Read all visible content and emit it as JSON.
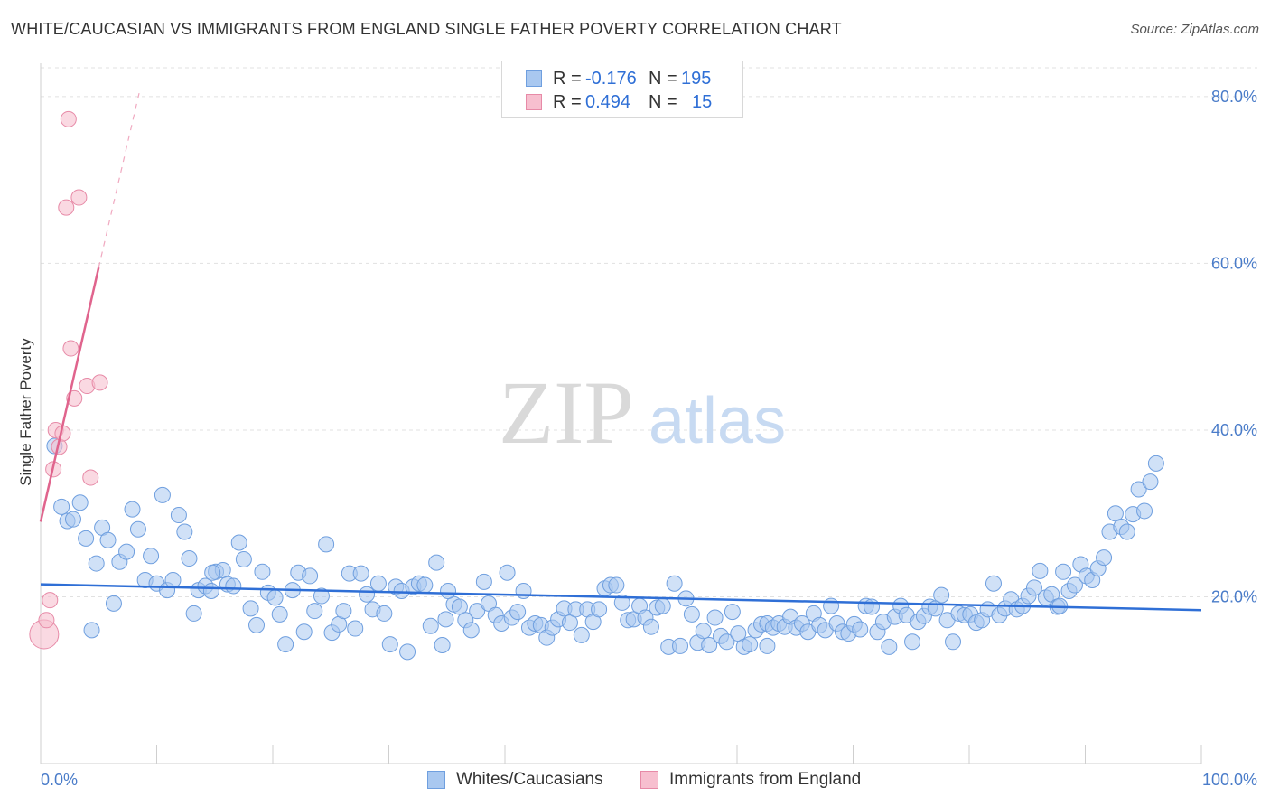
{
  "title": "WHITE/CAUCASIAN VS IMMIGRANTS FROM ENGLAND SINGLE FATHER POVERTY CORRELATION CHART",
  "source": "Source: ZipAtlas.com",
  "watermark": {
    "zip": "ZIP",
    "atlas": "atlas"
  },
  "legend": {
    "rows": [
      {
        "r_label": "R =",
        "r_value": "-0.176",
        "n_label": "N =",
        "n_value": "195",
        "color": "#a9c8f0",
        "border": "#6f9fdf"
      },
      {
        "r_label": "R =",
        "r_value": "0.494",
        "n_label": "N =",
        "n_value": "15",
        "color": "#f7bfcf",
        "border": "#e78aa7"
      }
    ]
  },
  "bottom_legend": [
    {
      "label": "Whites/Caucasians",
      "color": "#a9c8f0",
      "border": "#6f9fdf"
    },
    {
      "label": "Immigrants from England",
      "color": "#f7bfcf",
      "border": "#e78aa7"
    }
  ],
  "chart_data": {
    "type": "scatter",
    "title": "WHITE/CAUCASIAN VS IMMIGRANTS FROM ENGLAND SINGLE FATHER POVERTY CORRELATION CHART",
    "xlabel": "",
    "ylabel": "Single Father Poverty",
    "xlim": [
      0,
      100
    ],
    "ylim": [
      0,
      84
    ],
    "x_tick_labels": [
      "0.0%",
      "100.0%"
    ],
    "y_ticks": [
      20,
      40,
      60,
      80
    ],
    "y_tick_labels": [
      "20.0%",
      "40.0%",
      "60.0%",
      "80.0%"
    ],
    "grid": "horizontal dashed",
    "series": [
      {
        "name": "Whites/Caucasians",
        "color": "#a9c8f0",
        "edge": "#6f9fdf",
        "trend": {
          "x0": 0,
          "y0": 21.5,
          "x1": 100,
          "y1": 18.4,
          "color": "#2f6fd6"
        },
        "points": [
          [
            1.2,
            38.1
          ],
          [
            1.8,
            30.8
          ],
          [
            2.3,
            29.1
          ],
          [
            2.8,
            29.3
          ],
          [
            3.4,
            31.3
          ],
          [
            3.9,
            27.0
          ],
          [
            4.4,
            16.0
          ],
          [
            4.8,
            24.0
          ],
          [
            5.3,
            28.3
          ],
          [
            5.8,
            26.8
          ],
          [
            6.3,
            19.2
          ],
          [
            6.8,
            24.2
          ],
          [
            7.4,
            25.4
          ],
          [
            7.9,
            30.5
          ],
          [
            8.4,
            28.1
          ],
          [
            9.0,
            22.0
          ],
          [
            9.5,
            24.9
          ],
          [
            10.0,
            21.6
          ],
          [
            10.5,
            32.2
          ],
          [
            10.9,
            20.8
          ],
          [
            11.4,
            22.0
          ],
          [
            11.9,
            29.8
          ],
          [
            12.4,
            27.8
          ],
          [
            12.8,
            24.6
          ],
          [
            13.2,
            18.0
          ],
          [
            13.6,
            20.8
          ],
          [
            14.2,
            21.3
          ],
          [
            14.7,
            20.7
          ],
          [
            15.1,
            23.0
          ],
          [
            15.7,
            23.2
          ],
          [
            16.1,
            21.5
          ],
          [
            16.6,
            21.3
          ],
          [
            17.1,
            26.5
          ],
          [
            17.5,
            24.5
          ],
          [
            18.1,
            18.6
          ],
          [
            18.6,
            16.6
          ],
          [
            19.1,
            23.0
          ],
          [
            19.6,
            20.5
          ],
          [
            20.2,
            19.9
          ],
          [
            20.6,
            17.9
          ],
          [
            21.1,
            14.3
          ],
          [
            21.7,
            20.8
          ],
          [
            22.2,
            22.9
          ],
          [
            22.7,
            15.8
          ],
          [
            23.2,
            22.5
          ],
          [
            23.6,
            18.3
          ],
          [
            24.2,
            20.1
          ],
          [
            24.6,
            26.3
          ],
          [
            25.1,
            15.7
          ],
          [
            25.7,
            16.7
          ],
          [
            26.1,
            18.3
          ],
          [
            26.6,
            22.8
          ],
          [
            27.1,
            16.2
          ],
          [
            27.6,
            22.8
          ],
          [
            28.1,
            20.3
          ],
          [
            28.6,
            18.5
          ],
          [
            29.1,
            21.6
          ],
          [
            29.6,
            18.0
          ],
          [
            30.1,
            14.3
          ],
          [
            30.6,
            21.2
          ],
          [
            31.1,
            20.7
          ],
          [
            31.6,
            13.4
          ],
          [
            32.1,
            21.2
          ],
          [
            32.6,
            21.6
          ],
          [
            33.1,
            21.4
          ],
          [
            33.6,
            16.5
          ],
          [
            34.1,
            24.1
          ],
          [
            34.6,
            14.2
          ],
          [
            34.9,
            17.3
          ],
          [
            35.6,
            19.1
          ],
          [
            36.1,
            18.8
          ],
          [
            36.6,
            17.2
          ],
          [
            37.1,
            16.0
          ],
          [
            37.6,
            18.3
          ],
          [
            38.2,
            21.8
          ],
          [
            38.6,
            19.2
          ],
          [
            39.2,
            17.8
          ],
          [
            39.7,
            16.8
          ],
          [
            40.2,
            22.9
          ],
          [
            40.6,
            17.5
          ],
          [
            41.1,
            18.2
          ],
          [
            41.6,
            20.7
          ],
          [
            42.1,
            16.3
          ],
          [
            42.6,
            16.8
          ],
          [
            43.1,
            16.6
          ],
          [
            43.6,
            15.1
          ],
          [
            44.1,
            16.3
          ],
          [
            44.6,
            17.3
          ],
          [
            45.1,
            18.6
          ],
          [
            45.6,
            16.9
          ],
          [
            46.1,
            18.5
          ],
          [
            46.6,
            15.4
          ],
          [
            47.1,
            18.5
          ],
          [
            47.6,
            17.0
          ],
          [
            48.1,
            18.5
          ],
          [
            48.6,
            21.0
          ],
          [
            49.1,
            21.4
          ],
          [
            49.6,
            21.4
          ],
          [
            50.1,
            19.3
          ],
          [
            50.6,
            17.2
          ],
          [
            51.1,
            17.3
          ],
          [
            51.6,
            18.9
          ],
          [
            52.1,
            17.5
          ],
          [
            52.6,
            16.4
          ],
          [
            53.1,
            18.7
          ],
          [
            53.6,
            18.9
          ],
          [
            54.1,
            14.0
          ],
          [
            54.6,
            21.6
          ],
          [
            55.1,
            14.1
          ],
          [
            55.6,
            19.8
          ],
          [
            56.1,
            17.9
          ],
          [
            56.6,
            14.5
          ],
          [
            57.1,
            15.9
          ],
          [
            57.6,
            14.2
          ],
          [
            58.1,
            17.5
          ],
          [
            58.6,
            15.3
          ],
          [
            59.1,
            14.6
          ],
          [
            59.6,
            18.2
          ],
          [
            60.1,
            15.6
          ],
          [
            60.6,
            14.0
          ],
          [
            61.1,
            14.3
          ],
          [
            61.6,
            16.0
          ],
          [
            62.1,
            16.7
          ],
          [
            62.6,
            16.8
          ],
          [
            63.1,
            16.3
          ],
          [
            63.6,
            16.8
          ],
          [
            64.1,
            16.4
          ],
          [
            64.6,
            17.6
          ],
          [
            65.1,
            16.3
          ],
          [
            65.6,
            16.8
          ],
          [
            66.1,
            15.8
          ],
          [
            66.6,
            18.0
          ],
          [
            67.1,
            16.6
          ],
          [
            67.6,
            16.0
          ],
          [
            68.1,
            18.9
          ],
          [
            68.6,
            16.8
          ],
          [
            69.1,
            15.8
          ],
          [
            69.6,
            15.6
          ],
          [
            70.1,
            16.7
          ],
          [
            70.6,
            16.1
          ],
          [
            71.1,
            18.9
          ],
          [
            71.6,
            18.8
          ],
          [
            72.1,
            15.8
          ],
          [
            72.6,
            17.0
          ],
          [
            73.1,
            14.0
          ],
          [
            73.6,
            17.6
          ],
          [
            74.1,
            18.9
          ],
          [
            74.6,
            17.8
          ],
          [
            75.1,
            14.6
          ],
          [
            75.6,
            17.0
          ],
          [
            76.1,
            17.7
          ],
          [
            76.6,
            18.8
          ],
          [
            77.1,
            18.6
          ],
          [
            77.6,
            20.2
          ],
          [
            78.1,
            17.2
          ],
          [
            78.6,
            14.6
          ],
          [
            79.1,
            18.0
          ],
          [
            79.6,
            17.8
          ],
          [
            80.1,
            17.9
          ],
          [
            80.6,
            16.9
          ],
          [
            81.1,
            17.2
          ],
          [
            81.6,
            18.5
          ],
          [
            82.1,
            21.6
          ],
          [
            82.6,
            17.8
          ],
          [
            83.1,
            18.6
          ],
          [
            83.6,
            19.7
          ],
          [
            84.1,
            18.5
          ],
          [
            84.6,
            18.9
          ],
          [
            85.1,
            20.1
          ],
          [
            85.6,
            21.1
          ],
          [
            86.1,
            23.1
          ],
          [
            86.6,
            19.9
          ],
          [
            87.1,
            20.3
          ],
          [
            87.6,
            18.8
          ],
          [
            88.1,
            23.0
          ],
          [
            88.6,
            20.7
          ],
          [
            89.1,
            21.4
          ],
          [
            89.6,
            23.9
          ],
          [
            90.1,
            22.5
          ],
          [
            90.6,
            22.0
          ],
          [
            91.1,
            23.4
          ],
          [
            91.6,
            24.7
          ],
          [
            92.1,
            27.8
          ],
          [
            92.6,
            30.0
          ],
          [
            93.1,
            28.4
          ],
          [
            93.6,
            27.8
          ],
          [
            94.1,
            29.9
          ],
          [
            94.6,
            32.9
          ],
          [
            95.1,
            30.3
          ],
          [
            95.6,
            33.8
          ],
          [
            96.1,
            36.0
          ],
          [
            14.8,
            22.9
          ],
          [
            35.1,
            20.7
          ],
          [
            62.6,
            14.1
          ],
          [
            87.8,
            18.9
          ]
        ]
      },
      {
        "name": "Immigrants from England",
        "color": "#f7bfcf",
        "edge": "#e78aa7",
        "trend": {
          "x0": 0,
          "y0": 29.0,
          "x1": 5,
          "y1": 59.5,
          "dashed_to": {
            "x": 8.5,
            "y": 80.5
          },
          "color": "#e0648d"
        },
        "points": [
          [
            0.3,
            15.5
          ],
          [
            0.5,
            17.2
          ],
          [
            0.8,
            19.6
          ],
          [
            1.1,
            35.3
          ],
          [
            1.3,
            40.0
          ],
          [
            1.6,
            38.0
          ],
          [
            1.9,
            39.6
          ],
          [
            2.2,
            66.7
          ],
          [
            2.4,
            77.3
          ],
          [
            2.6,
            49.8
          ],
          [
            2.9,
            43.8
          ],
          [
            3.3,
            67.9
          ],
          [
            4.0,
            45.3
          ],
          [
            4.3,
            34.3
          ],
          [
            5.1,
            45.7
          ]
        ]
      }
    ]
  }
}
